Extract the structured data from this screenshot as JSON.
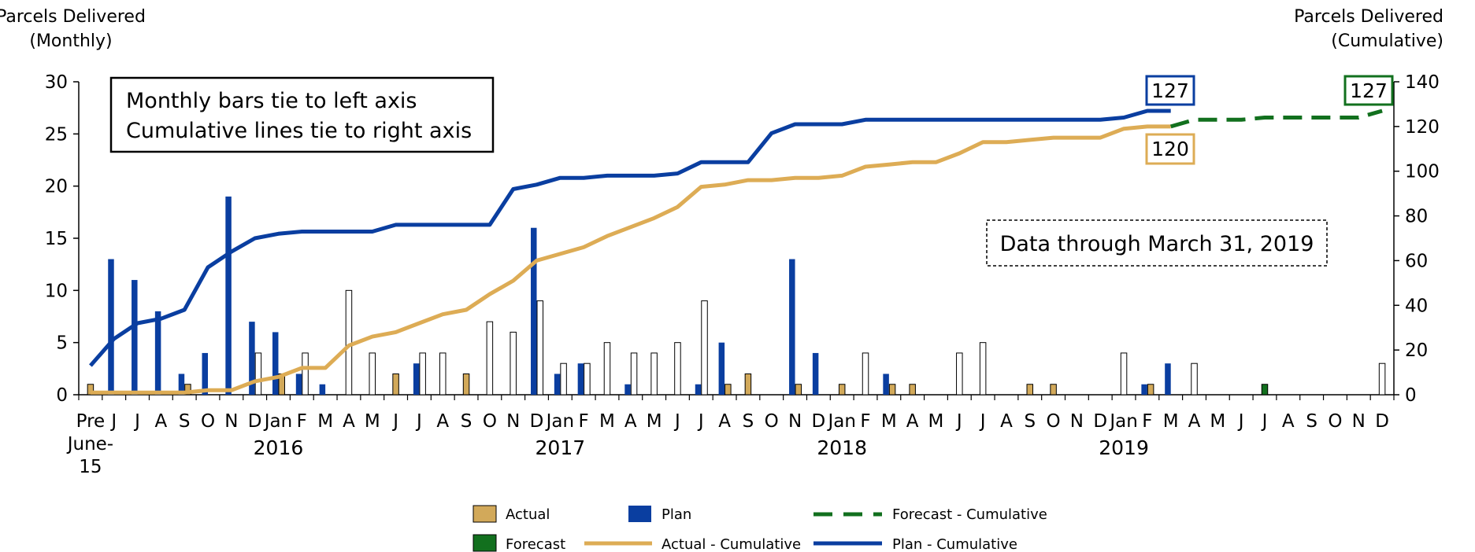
{
  "chart_data": {
    "type": "bar",
    "left_axis_title": [
      "Parcels Delivered",
      "(Monthly)"
    ],
    "right_axis_title": [
      "Parcels Delivered",
      "(Cumulative)"
    ],
    "ylim_left": [
      0,
      30
    ],
    "yticks_left": [
      0,
      5,
      10,
      15,
      20,
      25,
      30
    ],
    "ylim_right": [
      0,
      140
    ],
    "yticks_right": [
      0,
      20,
      40,
      60,
      80,
      100,
      120,
      140
    ],
    "categories": [
      "Pre June-15",
      "J",
      "J",
      "A",
      "S",
      "O",
      "N",
      "D",
      "Jan",
      "F",
      "M",
      "A",
      "M",
      "J",
      "J",
      "A",
      "S",
      "O",
      "N",
      "D",
      "Jan",
      "F",
      "M",
      "A",
      "M",
      "J",
      "J",
      "A",
      "S",
      "O",
      "N",
      "D",
      "Jan",
      "F",
      "M",
      "A",
      "M",
      "J",
      "J",
      "A",
      "S",
      "O",
      "N",
      "D",
      "Jan",
      "F",
      "M",
      "A",
      "M",
      "J",
      "J",
      "A",
      "S",
      "O",
      "N",
      "D"
    ],
    "years": [
      {
        "label": "2016",
        "index": 8
      },
      {
        "label": "2017",
        "index": 20
      },
      {
        "label": "2018",
        "index": 32
      },
      {
        "label": "2019",
        "index": 44
      }
    ],
    "series": [
      {
        "name": "Actual",
        "kind": "bar",
        "color": "#D2A95A",
        "values": [
          1,
          0,
          0,
          0,
          1,
          0,
          0,
          4,
          2,
          4,
          0,
          10,
          4,
          2,
          4,
          4,
          2,
          7,
          6,
          9,
          3,
          3,
          5,
          4,
          4,
          5,
          9,
          1,
          2,
          0,
          1,
          0,
          1,
          4,
          1,
          1,
          0,
          4,
          5,
          0,
          1,
          1,
          0,
          0,
          4,
          1,
          0,
          3,
          0,
          0,
          0,
          0,
          0,
          0,
          0,
          3
        ]
      },
      {
        "name": "Plan",
        "kind": "bar",
        "color": "#0A3EA0",
        "values": [
          0,
          13,
          11,
          8,
          2,
          4,
          19,
          7,
          6,
          2,
          1,
          0,
          0,
          0,
          3,
          0,
          0,
          0,
          0,
          16,
          2,
          3,
          0,
          1,
          0,
          0,
          1,
          5,
          0,
          0,
          13,
          4,
          0,
          0,
          2,
          0,
          0,
          0,
          0,
          0,
          0,
          0,
          0,
          0,
          0,
          1,
          3,
          0,
          0,
          0,
          0,
          0,
          0,
          0,
          0,
          0
        ]
      },
      {
        "name": "Forecast",
        "kind": "bar",
        "color": "#12701E",
        "values": [
          0,
          0,
          0,
          0,
          0,
          0,
          0,
          0,
          0,
          0,
          0,
          0,
          0,
          0,
          0,
          0,
          0,
          0,
          0,
          0,
          0,
          0,
          0,
          0,
          0,
          0,
          0,
          0,
          0,
          0,
          0,
          0,
          0,
          0,
          0,
          0,
          0,
          0,
          0,
          0,
          0,
          0,
          0,
          0,
          0,
          0,
          0,
          0,
          0,
          0,
          1,
          0,
          0,
          0,
          0,
          0
        ]
      },
      {
        "name": "Actual - Cumulative",
        "kind": "line",
        "color": "#DDAC55",
        "x": [
          0,
          1,
          2,
          3,
          4,
          5,
          6,
          7,
          8,
          9,
          10,
          11,
          12,
          13,
          14,
          15,
          16,
          17,
          18,
          19,
          20,
          21,
          22,
          23,
          24,
          25,
          26,
          27,
          28,
          29,
          30,
          31,
          32,
          33,
          34,
          35,
          36,
          37,
          38,
          39,
          40,
          41,
          42,
          43,
          44,
          45,
          46
        ],
        "values": [
          1,
          1,
          1,
          1,
          1,
          2,
          2,
          6,
          8,
          12,
          12,
          22,
          26,
          28,
          32,
          36,
          38,
          45,
          51,
          60,
          63,
          66,
          71,
          75,
          79,
          84,
          93,
          94,
          96,
          96,
          97,
          97,
          98,
          102,
          103,
          104,
          104,
          108,
          113,
          113,
          114,
          115,
          115,
          115,
          119,
          120,
          120
        ]
      },
      {
        "name": "Plan - Cumulative",
        "kind": "line",
        "color": "#0A3EA0",
        "x": [
          0,
          1,
          2,
          3,
          4,
          5,
          6,
          7,
          8,
          9,
          10,
          11,
          12,
          13,
          14,
          15,
          16,
          17,
          18,
          19,
          20,
          21,
          22,
          23,
          24,
          25,
          26,
          27,
          28,
          29,
          30,
          31,
          32,
          33,
          34,
          35,
          36,
          37,
          38,
          39,
          40,
          41,
          42,
          43,
          44,
          45,
          46
        ],
        "values": [
          13,
          25,
          32,
          34,
          38,
          57,
          64,
          70,
          72,
          73,
          73,
          73,
          73,
          76,
          76,
          76,
          76,
          76,
          92,
          94,
          97,
          97,
          98,
          98,
          98,
          99,
          104,
          104,
          104,
          117,
          121,
          121,
          121,
          123,
          123,
          123,
          123,
          123,
          123,
          123,
          123,
          123,
          123,
          123,
          124,
          127,
          127
        ]
      },
      {
        "name": "Forecast - Cumulative",
        "kind": "dashed-line",
        "color": "#12701E",
        "x": [
          46,
          47,
          48,
          49,
          50,
          51,
          52,
          53,
          54,
          55
        ],
        "values": [
          120,
          123,
          123,
          123,
          124,
          124,
          124,
          124,
          124,
          127
        ]
      }
    ],
    "callouts": {
      "plan_end": "127",
      "actual_end": "120",
      "forecast_end": "127"
    },
    "notes": {
      "axis_note_line1": "Monthly bars tie to left axis",
      "axis_note_line2": "Cumulative lines tie to right axis",
      "data_through": "Data through March 31, 2019"
    },
    "legend": [
      "Actual",
      "Plan",
      "Forecast - Cumulative",
      "Forecast",
      "Actual - Cumulative",
      "Plan - Cumulative"
    ],
    "legend_placement": "bottom-center",
    "grid": false
  }
}
